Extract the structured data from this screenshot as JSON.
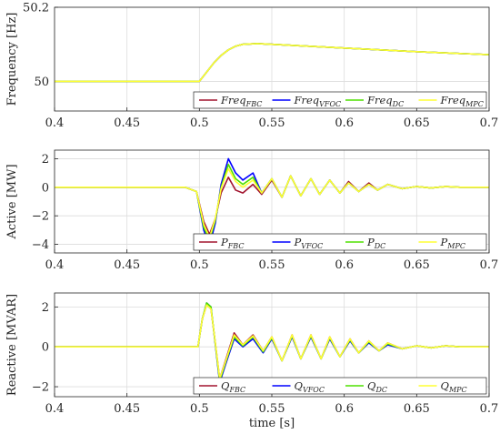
{
  "chart_data": [
    {
      "type": "line",
      "ylabel": "Frequency [Hz]",
      "xlabel": "",
      "xlim": [
        0.4,
        0.7
      ],
      "ylim": [
        49.92,
        50.2
      ],
      "xticks": [
        "0.4",
        "0.45",
        "0.5",
        "0.55",
        "0.6",
        "0.65",
        "0.7"
      ],
      "yticks": [
        {
          "value": 50,
          "label": "50"
        },
        {
          "value": 50.2,
          "label": "50.2"
        }
      ],
      "grid": true,
      "legend": "bottom-right",
      "series": [
        {
          "name": "Freq",
          "sub": "FBC",
          "color": "#a2142f",
          "x": [
            0.4,
            0.5,
            0.505,
            0.51,
            0.515,
            0.52,
            0.525,
            0.53,
            0.54,
            0.55,
            0.6,
            0.65,
            0.7
          ],
          "y": [
            50,
            50,
            50.025,
            50.05,
            50.07,
            50.085,
            50.095,
            50.1,
            50.102,
            50.1,
            50.09,
            50.08,
            50.072
          ]
        },
        {
          "name": "Freq",
          "sub": "VFOC",
          "color": "#0000ff",
          "x": [
            0.4,
            0.5,
            0.505,
            0.51,
            0.515,
            0.52,
            0.525,
            0.53,
            0.54,
            0.55,
            0.6,
            0.65,
            0.7
          ],
          "y": [
            50,
            50,
            50.025,
            50.05,
            50.07,
            50.085,
            50.095,
            50.1,
            50.102,
            50.1,
            50.09,
            50.08,
            50.072
          ]
        },
        {
          "name": "Freq",
          "sub": "DC",
          "color": "#4fe000",
          "x": [
            0.4,
            0.5,
            0.505,
            0.51,
            0.515,
            0.52,
            0.525,
            0.53,
            0.54,
            0.55,
            0.6,
            0.65,
            0.7
          ],
          "y": [
            50,
            50,
            50.025,
            50.05,
            50.07,
            50.085,
            50.095,
            50.1,
            50.102,
            50.1,
            50.09,
            50.08,
            50.072
          ]
        },
        {
          "name": "Freq",
          "sub": "MPC",
          "color": "#ffff33",
          "x": [
            0.4,
            0.5,
            0.505,
            0.51,
            0.515,
            0.52,
            0.525,
            0.53,
            0.54,
            0.55,
            0.6,
            0.65,
            0.7
          ],
          "y": [
            50,
            50,
            50.025,
            50.05,
            50.07,
            50.085,
            50.095,
            50.1,
            50.102,
            50.1,
            50.09,
            50.08,
            50.072
          ]
        }
      ]
    },
    {
      "type": "line",
      "ylabel": "Active [MW]",
      "xlabel": "",
      "xlim": [
        0.4,
        0.7
      ],
      "ylim": [
        -4.6,
        2.6
      ],
      "xticks": [
        "0.4",
        "0.45",
        "0.5",
        "0.55",
        "0.6",
        "0.65",
        "0.7"
      ],
      "yticks": [
        {
          "value": -4,
          "label": "−4"
        },
        {
          "value": -2,
          "label": "−2"
        },
        {
          "value": 0,
          "label": "0"
        },
        {
          "value": 2,
          "label": "2"
        }
      ],
      "grid": true,
      "legend": "bottom-right",
      "series": [
        {
          "name": "P",
          "sub": "FBC",
          "color": "#a2142f",
          "x": [
            0.4,
            0.49,
            0.498,
            0.503,
            0.507,
            0.511,
            0.515,
            0.52,
            0.525,
            0.53,
            0.537,
            0.543,
            0.55,
            0.557,
            0.563,
            0.57,
            0.577,
            0.583,
            0.59,
            0.597,
            0.603,
            0.61,
            0.617,
            0.623,
            0.63,
            0.64,
            0.65,
            0.66,
            0.67,
            0.68,
            0.7
          ],
          "y": [
            0,
            0,
            -0.3,
            -2.4,
            -3.3,
            -2.2,
            -0.4,
            0.7,
            -0.2,
            -0.4,
            0.2,
            -0.5,
            0.5,
            -0.7,
            0.8,
            -0.6,
            0.6,
            -0.5,
            0.5,
            -0.4,
            0.4,
            -0.3,
            0.3,
            -0.2,
            0.2,
            -0.1,
            0.05,
            -0.05,
            0.05,
            0,
            0
          ]
        },
        {
          "name": "P",
          "sub": "VFOC",
          "color": "#0000ff",
          "x": [
            0.4,
            0.49,
            0.498,
            0.503,
            0.507,
            0.511,
            0.515,
            0.52,
            0.525,
            0.53,
            0.537,
            0.543,
            0.55,
            0.557,
            0.563,
            0.57,
            0.577,
            0.583,
            0.59,
            0.597,
            0.603,
            0.61,
            0.617,
            0.623,
            0.63,
            0.64,
            0.65,
            0.66,
            0.67,
            0.68,
            0.7
          ],
          "y": [
            0,
            0,
            -0.3,
            -3.0,
            -4.1,
            -2.5,
            0.2,
            2.0,
            1.0,
            0.5,
            1.0,
            -0.4,
            0.6,
            -0.7,
            0.8,
            -0.6,
            0.6,
            -0.5,
            0.5,
            -0.4,
            0.3,
            -0.3,
            0.2,
            -0.2,
            0.2,
            -0.1,
            0.05,
            -0.05,
            0.05,
            0,
            0
          ]
        },
        {
          "name": "P",
          "sub": "DC",
          "color": "#4fe000",
          "x": [
            0.4,
            0.49,
            0.498,
            0.503,
            0.507,
            0.511,
            0.515,
            0.52,
            0.525,
            0.53,
            0.537,
            0.543,
            0.55,
            0.557,
            0.563,
            0.57,
            0.577,
            0.583,
            0.59,
            0.597,
            0.603,
            0.61,
            0.617,
            0.623,
            0.63,
            0.64,
            0.65,
            0.66,
            0.67,
            0.68,
            0.7
          ],
          "y": [
            0,
            0,
            -0.3,
            -2.8,
            -3.7,
            -2.3,
            0.0,
            1.6,
            0.6,
            0.2,
            0.7,
            -0.4,
            0.6,
            -0.7,
            0.8,
            -0.6,
            0.6,
            -0.5,
            0.5,
            -0.4,
            0.3,
            -0.3,
            0.2,
            -0.2,
            0.2,
            -0.1,
            0.05,
            -0.05,
            0.05,
            0,
            0
          ]
        },
        {
          "name": "P",
          "sub": "MPC",
          "color": "#ffff33",
          "x": [
            0.4,
            0.49,
            0.498,
            0.503,
            0.507,
            0.511,
            0.515,
            0.52,
            0.525,
            0.53,
            0.537,
            0.543,
            0.55,
            0.557,
            0.563,
            0.57,
            0.577,
            0.583,
            0.59,
            0.597,
            0.603,
            0.61,
            0.617,
            0.623,
            0.63,
            0.64,
            0.65,
            0.66,
            0.67,
            0.68,
            0.7
          ],
          "y": [
            0,
            0,
            -0.3,
            -2.6,
            -3.5,
            -2.2,
            -0.1,
            1.3,
            0.4,
            0.0,
            0.5,
            -0.4,
            0.6,
            -0.7,
            0.8,
            -0.6,
            0.6,
            -0.5,
            0.5,
            -0.4,
            0.3,
            -0.3,
            0.2,
            -0.2,
            0.2,
            -0.1,
            0.05,
            -0.05,
            0.05,
            0,
            0
          ]
        }
      ]
    },
    {
      "type": "line",
      "ylabel": "Reactive [MVAR]",
      "xlabel": "time [s]",
      "xlim": [
        0.4,
        0.7
      ],
      "ylim": [
        -2.5,
        2.7
      ],
      "xticks": [
        "0.4",
        "0.45",
        "0.5",
        "0.55",
        "0.6",
        "0.65",
        "0.7"
      ],
      "yticks": [
        {
          "value": -2,
          "label": "−2"
        },
        {
          "value": 0,
          "label": "0"
        },
        {
          "value": 2,
          "label": "2"
        }
      ],
      "grid": true,
      "legend": "bottom-right",
      "series": [
        {
          "name": "Q",
          "sub": "FBC",
          "color": "#a2142f",
          "x": [
            0.4,
            0.499,
            0.502,
            0.505,
            0.508,
            0.511,
            0.514,
            0.518,
            0.524,
            0.53,
            0.537,
            0.544,
            0.55,
            0.557,
            0.564,
            0.57,
            0.577,
            0.584,
            0.59,
            0.597,
            0.604,
            0.61,
            0.617,
            0.624,
            0.63,
            0.64,
            0.65,
            0.66,
            0.67,
            0.68,
            0.7
          ],
          "y": [
            0,
            0,
            1.4,
            2.1,
            1.9,
            0.2,
            -1.6,
            -0.7,
            0.7,
            0.1,
            0.6,
            -0.2,
            0.5,
            -0.7,
            0.6,
            -0.6,
            0.6,
            -0.6,
            0.5,
            -0.5,
            0.4,
            -0.3,
            0.3,
            -0.2,
            0.2,
            -0.1,
            0.05,
            -0.05,
            0.05,
            0,
            0
          ]
        },
        {
          "name": "Q",
          "sub": "VFOC",
          "color": "#0000ff",
          "x": [
            0.4,
            0.499,
            0.502,
            0.505,
            0.508,
            0.511,
            0.514,
            0.518,
            0.524,
            0.53,
            0.537,
            0.544,
            0.55,
            0.557,
            0.564,
            0.57,
            0.577,
            0.584,
            0.59,
            0.597,
            0.604,
            0.61,
            0.617,
            0.624,
            0.63,
            0.64,
            0.65,
            0.66,
            0.67,
            0.68,
            0.7
          ],
          "y": [
            0,
            0,
            1.4,
            2.2,
            2.0,
            0.1,
            -1.8,
            -0.9,
            0.4,
            0.0,
            0.4,
            -0.3,
            0.4,
            -0.7,
            0.5,
            -0.6,
            0.5,
            -0.6,
            0.4,
            -0.5,
            0.3,
            -0.3,
            0.2,
            -0.2,
            0.1,
            -0.1,
            0.05,
            -0.05,
            0.05,
            0,
            0
          ]
        },
        {
          "name": "Q",
          "sub": "DC",
          "color": "#4fe000",
          "x": [
            0.4,
            0.499,
            0.502,
            0.505,
            0.508,
            0.511,
            0.514,
            0.518,
            0.524,
            0.53,
            0.537,
            0.544,
            0.55,
            0.557,
            0.564,
            0.57,
            0.577,
            0.584,
            0.59,
            0.597,
            0.604,
            0.61,
            0.617,
            0.624,
            0.63,
            0.64,
            0.65,
            0.66,
            0.67,
            0.68,
            0.7
          ],
          "y": [
            0,
            0,
            1.4,
            2.2,
            2.0,
            0.15,
            -1.7,
            -0.8,
            0.5,
            0.05,
            0.5,
            -0.25,
            0.45,
            -0.7,
            0.55,
            -0.6,
            0.55,
            -0.6,
            0.45,
            -0.5,
            0.35,
            -0.3,
            0.25,
            -0.2,
            0.15,
            -0.1,
            0.05,
            -0.05,
            0.05,
            0,
            0
          ]
        },
        {
          "name": "Q",
          "sub": "MPC",
          "color": "#ffff33",
          "x": [
            0.4,
            0.499,
            0.502,
            0.505,
            0.508,
            0.511,
            0.514,
            0.518,
            0.524,
            0.53,
            0.537,
            0.544,
            0.55,
            0.557,
            0.564,
            0.57,
            0.577,
            0.584,
            0.59,
            0.597,
            0.604,
            0.61,
            0.617,
            0.624,
            0.63,
            0.64,
            0.65,
            0.66,
            0.67,
            0.68,
            0.7
          ],
          "y": [
            0,
            0,
            1.4,
            2.1,
            1.9,
            0.2,
            -1.6,
            -0.75,
            0.6,
            0.1,
            0.55,
            -0.2,
            0.5,
            -0.7,
            0.6,
            -0.6,
            0.6,
            -0.6,
            0.5,
            -0.5,
            0.4,
            -0.3,
            0.3,
            -0.2,
            0.2,
            -0.1,
            0.05,
            -0.05,
            0.05,
            0,
            0
          ]
        }
      ]
    }
  ]
}
